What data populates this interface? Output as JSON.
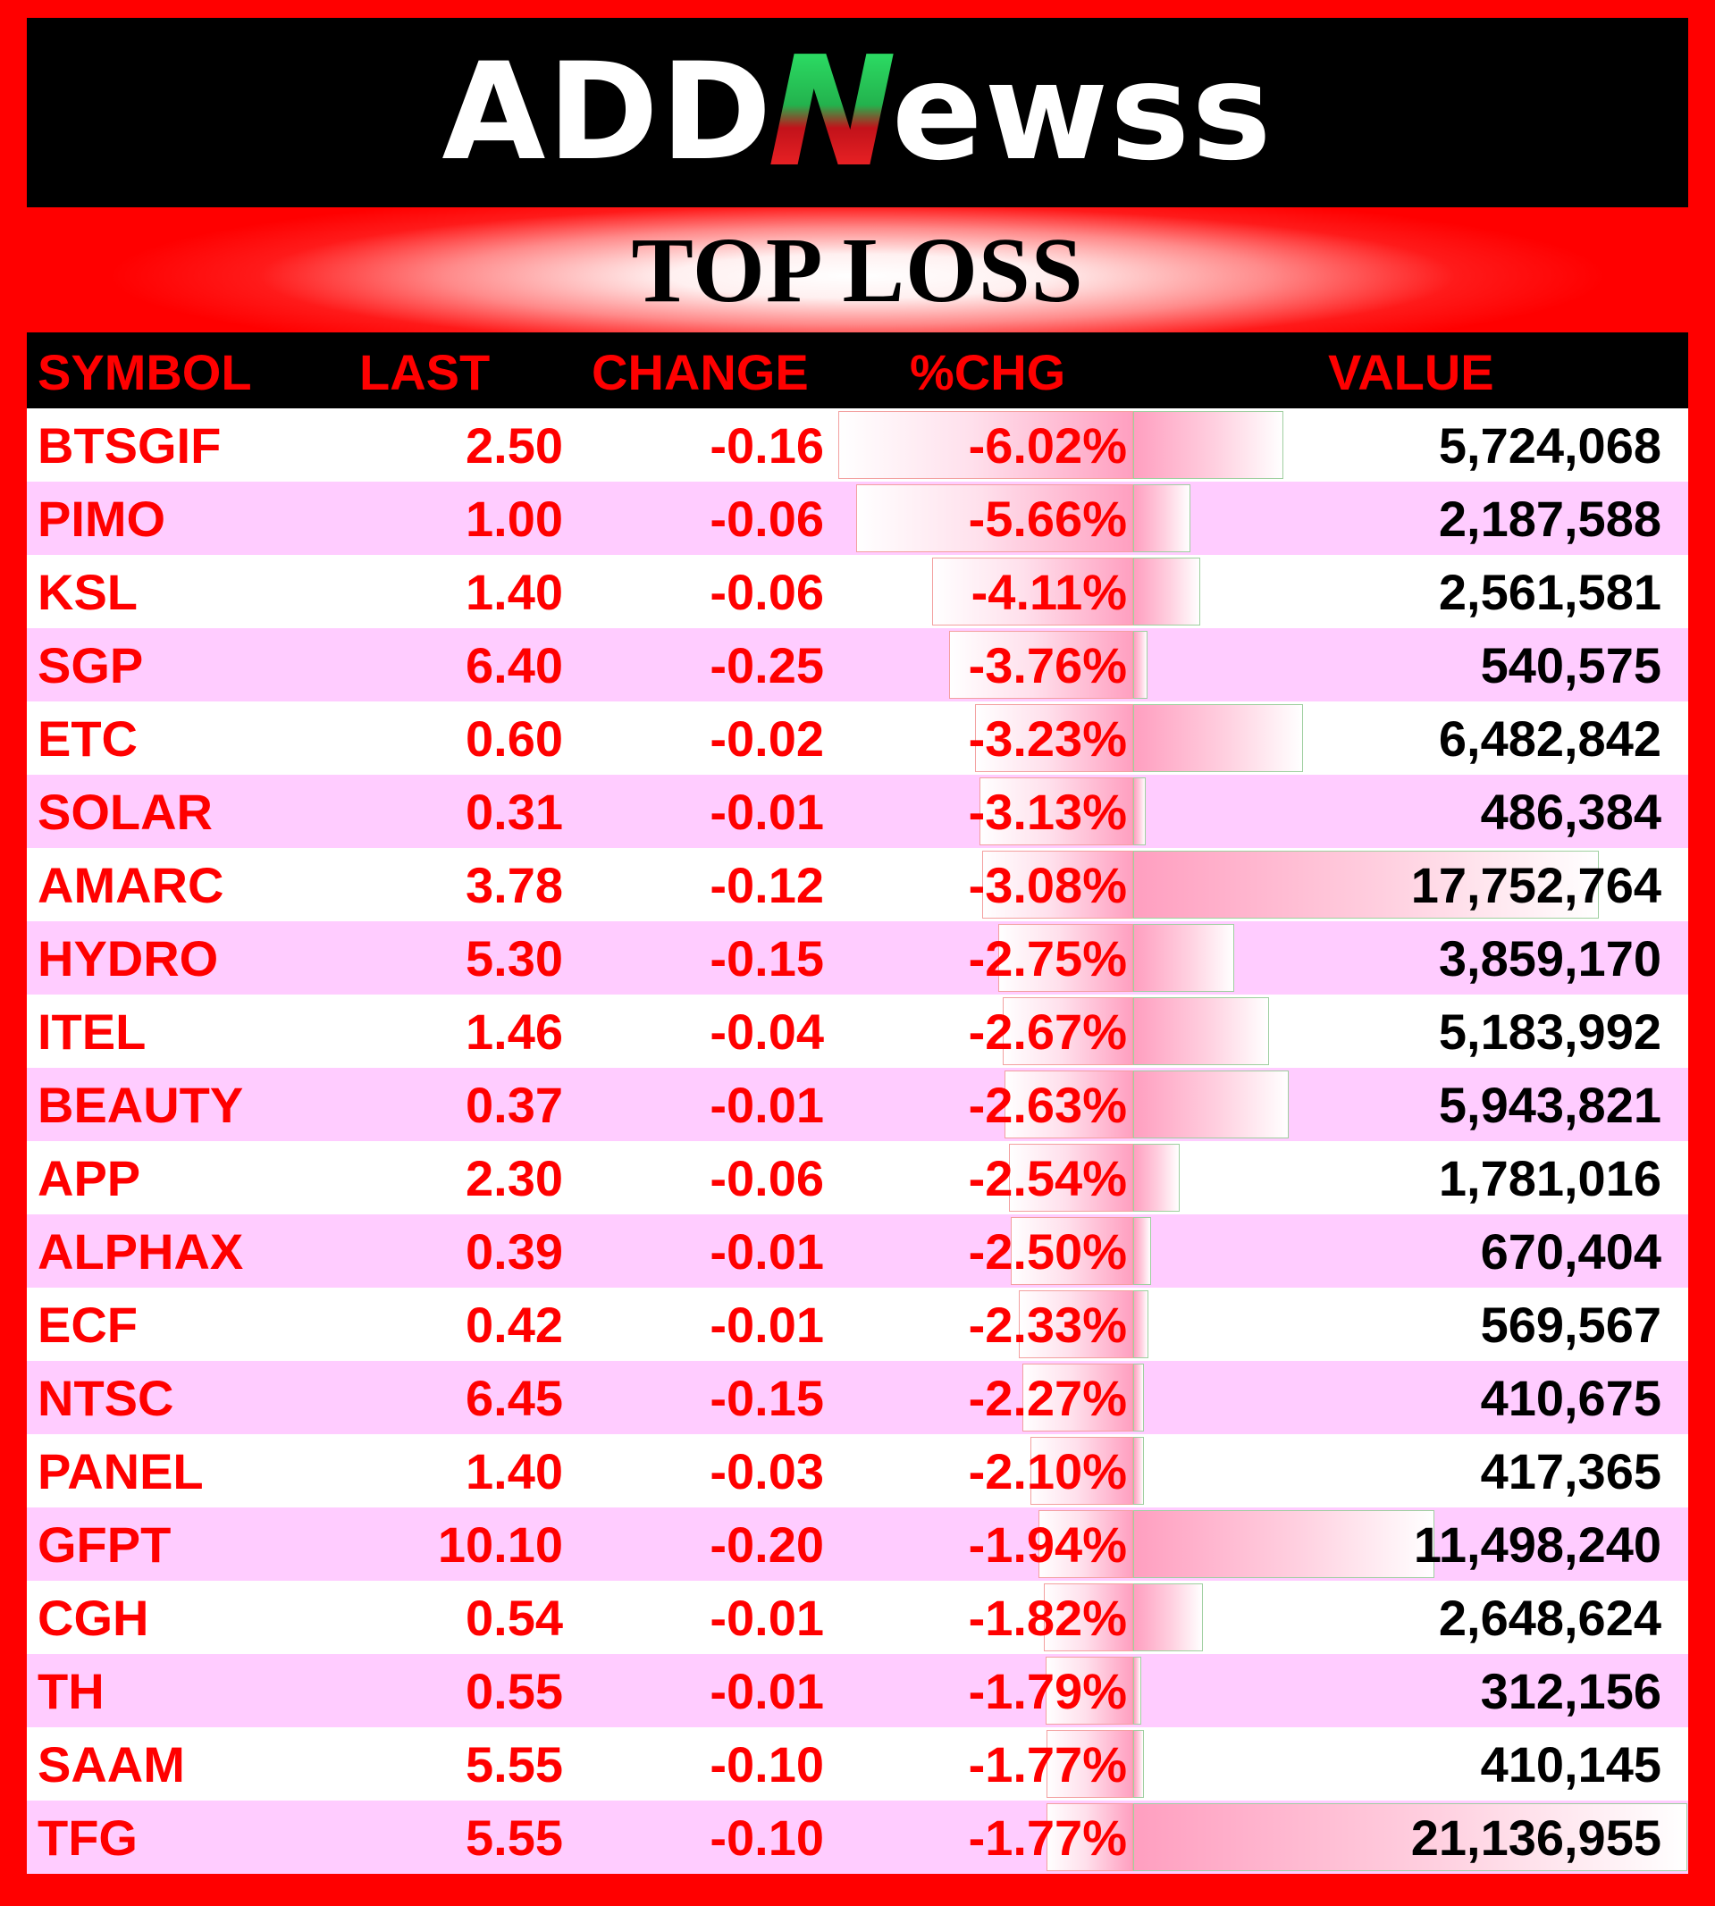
{
  "header": {
    "logo_left": "ADD",
    "logo_n": "N",
    "logo_right": "ewss"
  },
  "banner": {
    "title": "TOP LOSS"
  },
  "columns": {
    "symbol": "SYMBOL",
    "last": "LAST",
    "change": "CHANGE",
    "pct": "%CHG",
    "value": "VALUE"
  },
  "colors": {
    "accent": "#ff0000",
    "row_alt": "#ffccff",
    "bar": "#ff9fc0"
  },
  "rows": [
    {
      "symbol": "BTSGIF",
      "last": "2.50",
      "change": "-0.16",
      "pct": "-6.02%",
      "value": "5,724,068"
    },
    {
      "symbol": "PIMO",
      "last": "1.00",
      "change": "-0.06",
      "pct": "-5.66%",
      "value": "2,187,588"
    },
    {
      "symbol": "KSL",
      "last": "1.40",
      "change": "-0.06",
      "pct": "-4.11%",
      "value": "2,561,581"
    },
    {
      "symbol": "SGP",
      "last": "6.40",
      "change": "-0.25",
      "pct": "-3.76%",
      "value": "540,575"
    },
    {
      "symbol": "ETC",
      "last": "0.60",
      "change": "-0.02",
      "pct": "-3.23%",
      "value": "6,482,842"
    },
    {
      "symbol": "SOLAR",
      "last": "0.31",
      "change": "-0.01",
      "pct": "-3.13%",
      "value": "486,384"
    },
    {
      "symbol": "AMARC",
      "last": "3.78",
      "change": "-0.12",
      "pct": "-3.08%",
      "value": "17,752,764"
    },
    {
      "symbol": "HYDRO",
      "last": "5.30",
      "change": "-0.15",
      "pct": "-2.75%",
      "value": "3,859,170"
    },
    {
      "symbol": "ITEL",
      "last": "1.46",
      "change": "-0.04",
      "pct": "-2.67%",
      "value": "5,183,992"
    },
    {
      "symbol": "BEAUTY",
      "last": "0.37",
      "change": "-0.01",
      "pct": "-2.63%",
      "value": "5,943,821"
    },
    {
      "symbol": "APP",
      "last": "2.30",
      "change": "-0.06",
      "pct": "-2.54%",
      "value": "1,781,016"
    },
    {
      "symbol": "ALPHAX",
      "last": "0.39",
      "change": "-0.01",
      "pct": "-2.50%",
      "value": "670,404"
    },
    {
      "symbol": "ECF",
      "last": "0.42",
      "change": "-0.01",
      "pct": "-2.33%",
      "value": "569,567"
    },
    {
      "symbol": "NTSC",
      "last": "6.45",
      "change": "-0.15",
      "pct": "-2.27%",
      "value": "410,675"
    },
    {
      "symbol": "PANEL",
      "last": "1.40",
      "change": "-0.03",
      "pct": "-2.10%",
      "value": "417,365"
    },
    {
      "symbol": "GFPT",
      "last": "10.10",
      "change": "-0.20",
      "pct": "-1.94%",
      "value": "11,498,240"
    },
    {
      "symbol": "CGH",
      "last": "0.54",
      "change": "-0.01",
      "pct": "-1.82%",
      "value": "2,648,624"
    },
    {
      "symbol": "TH",
      "last": "0.55",
      "change": "-0.01",
      "pct": "-1.79%",
      "value": "312,156"
    },
    {
      "symbol": "SAAM",
      "last": "5.55",
      "change": "-0.10",
      "pct": "-1.77%",
      "value": "410,145"
    },
    {
      "symbol": "TFG",
      "last": "5.55",
      "change": "-0.10",
      "pct": "-1.77%",
      "value": "21,136,955"
    }
  ]
}
